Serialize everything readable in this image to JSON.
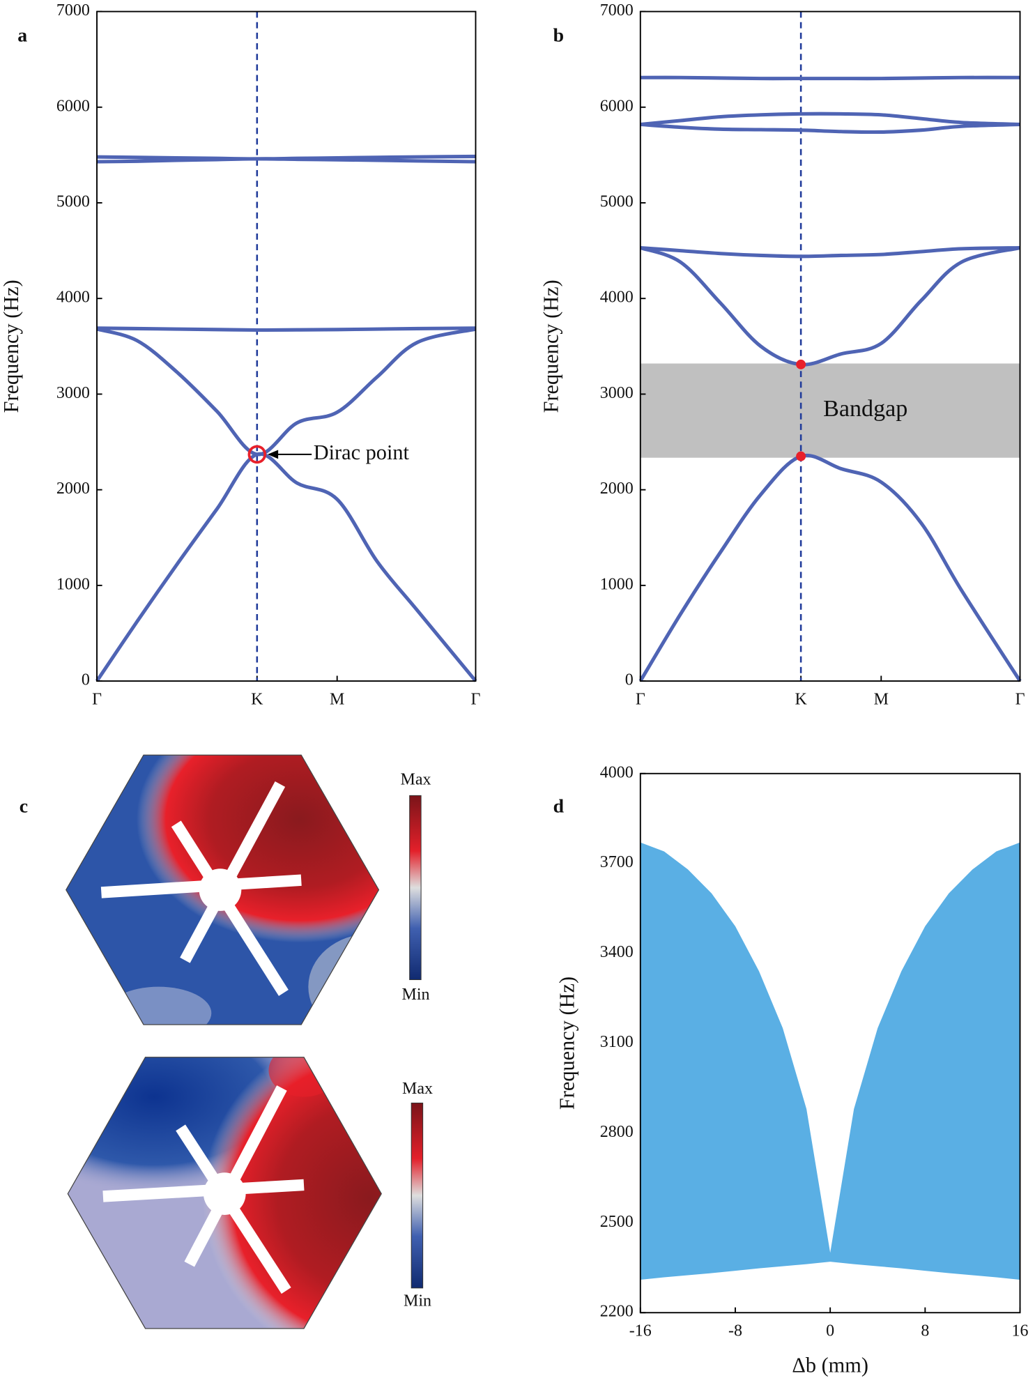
{
  "chart_data": [
    {
      "type": "line",
      "panel_label": "a",
      "y_label": "Frequency (Hz)",
      "x": [
        0,
        0.5,
        1,
        1.5,
        2,
        2.5,
        3,
        3.5,
        4,
        4.73
      ],
      "xlim": [
        0,
        4.73
      ],
      "xticks": [
        {
          "value": 0,
          "label": "Γ"
        },
        {
          "value": 2,
          "label": "K"
        },
        {
          "value": 3,
          "label": "M"
        },
        {
          "value": 4.73,
          "label": "Γ"
        }
      ],
      "ylim": [
        0,
        7000
      ],
      "yticks": [
        0,
        1000,
        2000,
        3000,
        4000,
        5000,
        6000,
        7000
      ],
      "vline_x": 2,
      "series": [
        {
          "color": "#4f64b4",
          "values": [
            0,
            620,
            1220,
            1800,
            2370,
            2070,
            1900,
            1250,
            740,
            0
          ]
        },
        {
          "color": "#4f64b4",
          "values": [
            3680,
            3560,
            3230,
            2820,
            2370,
            2700,
            2810,
            3180,
            3540,
            3680
          ]
        },
        {
          "color": "#4f64b4",
          "values": [
            3690,
            3685,
            3680,
            3675,
            3670,
            3672,
            3675,
            3680,
            3685,
            3690
          ]
        },
        {
          "color": "#4f64b4",
          "values": [
            5480,
            5475,
            5470,
            5465,
            5460,
            5465,
            5470,
            5475,
            5480,
            5485
          ]
        },
        {
          "color": "#4f64b4",
          "values": [
            5430,
            5435,
            5445,
            5452,
            5460,
            5455,
            5450,
            5445,
            5438,
            5430
          ]
        }
      ],
      "annotation": {
        "text": "Dirac point",
        "x": 2,
        "y": 2370,
        "color": "#e8202a"
      }
    },
    {
      "type": "line",
      "panel_label": "b",
      "y_label": "Frequency (Hz)",
      "x": [
        0,
        0.5,
        1,
        1.5,
        2,
        2.5,
        3,
        3.5,
        4,
        4.73
      ],
      "xlim": [
        0,
        4.73
      ],
      "xticks": [
        {
          "value": 0,
          "label": "Γ"
        },
        {
          "value": 2,
          "label": "K"
        },
        {
          "value": 3,
          "label": "M"
        },
        {
          "value": 4.73,
          "label": "Γ"
        }
      ],
      "ylim": [
        0,
        7000
      ],
      "yticks": [
        0,
        1000,
        2000,
        3000,
        4000,
        5000,
        6000,
        7000
      ],
      "vline_x": 2,
      "bandgap": {
        "label": "Bandgap",
        "range": [
          2335,
          3320
        ],
        "color": "#c0c0c0"
      },
      "series": [
        {
          "color": "#4f64b4",
          "values": [
            0,
            700,
            1350,
            1950,
            2350,
            2220,
            2080,
            1650,
            950,
            0
          ]
        },
        {
          "color": "#4f64b4",
          "values": [
            4530,
            4380,
            3950,
            3500,
            3310,
            3420,
            3530,
            3980,
            4380,
            4530
          ]
        },
        {
          "color": "#4f64b4",
          "values": [
            4530,
            4500,
            4470,
            4450,
            4440,
            4450,
            4460,
            4490,
            4520,
            4530
          ]
        },
        {
          "color": "#4f64b4",
          "values": [
            5820,
            5860,
            5900,
            5920,
            5930,
            5930,
            5920,
            5880,
            5840,
            5820
          ]
        },
        {
          "color": "#4f64b4",
          "values": [
            5820,
            5790,
            5770,
            5765,
            5760,
            5745,
            5740,
            5760,
            5800,
            5820
          ]
        },
        {
          "color": "#4f64b4",
          "values": [
            6310,
            6310,
            6305,
            6300,
            6300,
            6300,
            6300,
            6305,
            6310,
            6310
          ]
        }
      ],
      "markers": {
        "x": [
          2,
          2
        ],
        "y": [
          2350,
          3310
        ],
        "color": "#e8202a"
      }
    },
    {
      "type": "area",
      "panel_label": "d",
      "y_label": "Frequency (Hz)",
      "x_label": "Δb (mm)",
      "x": [
        -16,
        -14,
        -12,
        -10,
        -8,
        -6,
        -4,
        -2,
        0,
        2,
        4,
        6,
        8,
        10,
        12,
        14,
        16
      ],
      "upper": [
        3770,
        3740,
        3680,
        3600,
        3490,
        3340,
        3150,
        2880,
        2400,
        2880,
        3150,
        3340,
        3490,
        3600,
        3680,
        3740,
        3770
      ],
      "lower": [
        2310,
        2318,
        2325,
        2332,
        2340,
        2348,
        2355,
        2362,
        2370,
        2362,
        2355,
        2348,
        2340,
        2332,
        2325,
        2318,
        2310
      ],
      "color": "#5aafe4",
      "xlim": [
        -16,
        16
      ],
      "xticks": [
        -16,
        -8,
        0,
        8,
        16
      ],
      "ylim": [
        2200,
        4000
      ],
      "yticks": [
        2200,
        2500,
        2800,
        3100,
        3400,
        3700,
        4000
      ]
    }
  ],
  "panel_c": {
    "label": "c",
    "colorbars": [
      {
        "max": "Max",
        "min": "Min"
      },
      {
        "max": "Max",
        "min": "Min"
      }
    ]
  }
}
